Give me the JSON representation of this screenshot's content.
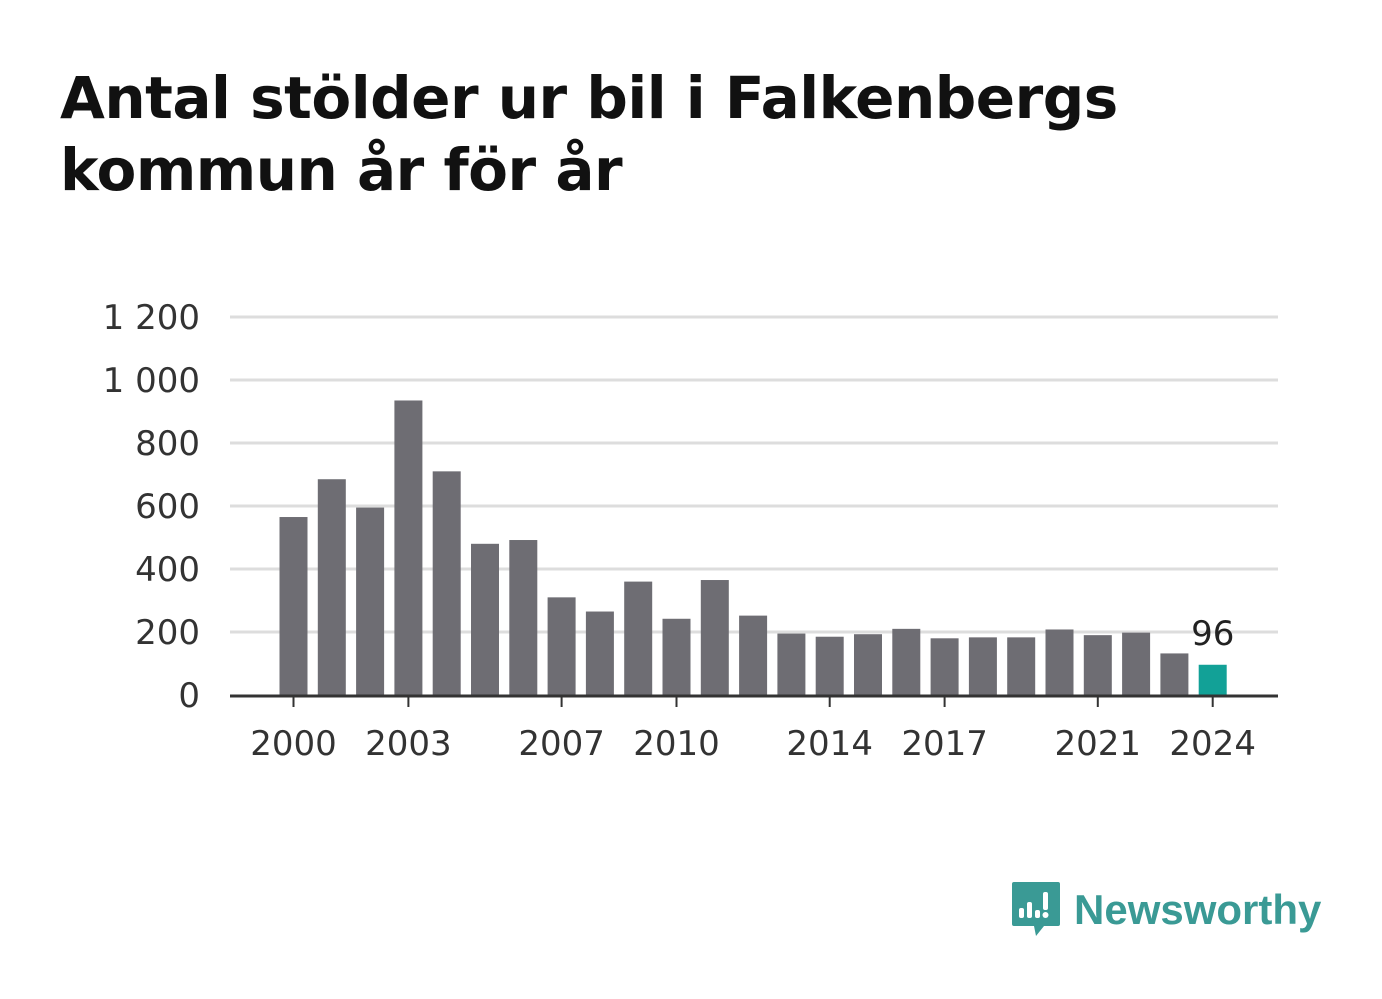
{
  "title": "Antal stölder ur bil i Falkenbergs kommun år för år",
  "brand": {
    "name": "Newsworthy",
    "color": "#3a9a95"
  },
  "chart_data": {
    "type": "bar",
    "title": "Antal stölder ur bil i Falkenbergs kommun år för år",
    "xlabel": "",
    "ylabel": "",
    "ylim": [
      0,
      1200
    ],
    "y_ticks": [
      "0",
      "200",
      "400",
      "600",
      "800",
      "1 000",
      "1 200"
    ],
    "y_tick_values": [
      0,
      200,
      400,
      600,
      800,
      1000,
      1200
    ],
    "x_tick_labels": [
      "2000",
      "2003",
      "2007",
      "2010",
      "2014",
      "2017",
      "2021",
      "2024"
    ],
    "categories": [
      "2000",
      "2001",
      "2002",
      "2003",
      "2004",
      "2005",
      "2006",
      "2007",
      "2008",
      "2009",
      "2010",
      "2011",
      "2012",
      "2013",
      "2014",
      "2015",
      "2016",
      "2017",
      "2018",
      "2019",
      "2020",
      "2021",
      "2022",
      "2023",
      "2024"
    ],
    "values": [
      565,
      685,
      595,
      935,
      710,
      480,
      492,
      310,
      265,
      360,
      242,
      365,
      252,
      195,
      185,
      193,
      210,
      180,
      183,
      183,
      208,
      190,
      198,
      132,
      96
    ],
    "bar_color": "#6e6d73",
    "highlight_color": "#12a197",
    "highlight_index": 24,
    "data_labels": [
      {
        "index": 24,
        "text": "96"
      }
    ],
    "grid": true,
    "legend": "none"
  }
}
